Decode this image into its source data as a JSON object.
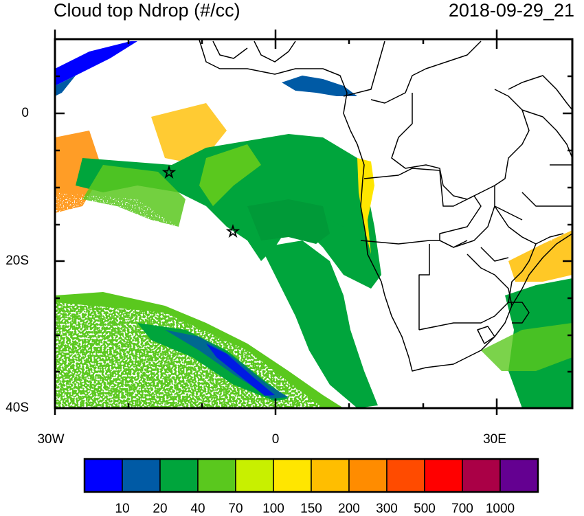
{
  "title": "Cloud top Ndrop (#/cc)",
  "timestamp": "2018-09-29_21",
  "lat_labels": [
    "0",
    "20S",
    "40S"
  ],
  "lon_labels": [
    "30W",
    "0",
    "30E"
  ],
  "markers": [
    {
      "name": "star",
      "lon": -14.3,
      "lat": -8.0
    },
    {
      "name": "star",
      "lon": -5.7,
      "lat": -16.0
    }
  ],
  "colorbar": {
    "colors": [
      "#0000ff",
      "#005aa5",
      "#00a53c",
      "#5ac81e",
      "#c8f000",
      "#ffe600",
      "#ffbe00",
      "#ff8c00",
      "#ff4b00",
      "#ff0000",
      "#aa0046",
      "#640091"
    ],
    "labels": [
      "10",
      "20",
      "40",
      "70",
      "100",
      "150",
      "200",
      "300",
      "500",
      "700",
      "1000"
    ]
  },
  "chart_data": {
    "type": "heatmap",
    "title": "Cloud top Ndrop (#/cc)",
    "subtitle": "2018-09-29_21",
    "xlim": [
      -30,
      40
    ],
    "ylim": [
      -40,
      10
    ],
    "xticks": [
      -30,
      0,
      30
    ],
    "xtick_labels": [
      "30W",
      "0",
      "30E"
    ],
    "yticks": [
      0,
      -20,
      -40
    ],
    "ytick_labels": [
      "0",
      "20S",
      "40S"
    ],
    "colorbar_levels": [
      10,
      20,
      40,
      70,
      100,
      150,
      200,
      300,
      500,
      700,
      1000
    ]
  }
}
